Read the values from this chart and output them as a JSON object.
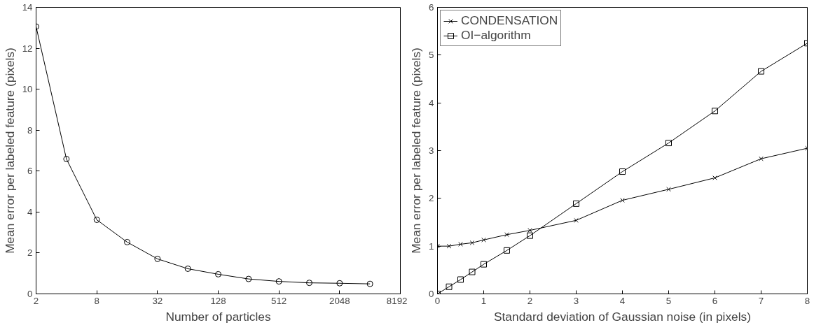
{
  "chart_data": [
    {
      "type": "line",
      "xlabel": "Number of particles",
      "ylabel": "Mean error per labeled feature (pixels)",
      "log": "x",
      "x": [
        2,
        4,
        8,
        16,
        32,
        64,
        128,
        256,
        512,
        1024,
        2048,
        4096
      ],
      "series": [
        {
          "color": "#000000",
          "values": [
            13.06,
            6.59,
            3.62,
            2.53,
            1.71,
            1.23,
            0.96,
            0.73,
            0.61,
            0.54,
            0.52,
            0.49
          ],
          "marker": "circle"
        }
      ],
      "xlim": [
        2,
        8192
      ],
      "xticks": [
        2,
        8,
        32,
        128,
        512,
        2048,
        8192
      ],
      "ylim": [
        0,
        14
      ],
      "yticks": [
        0,
        2,
        4,
        6,
        8,
        10,
        12,
        14
      ],
      "grid": false,
      "legend": false,
      "line_style": "solid"
    },
    {
      "type": "line",
      "xlabel": "Standard deviation of Gaussian noise (in pixels)",
      "ylabel": "Mean error per labeled feature (pixels)",
      "x": [
        0,
        0.25,
        0.5,
        0.75,
        1,
        1.5,
        2,
        3,
        4,
        5,
        6,
        7,
        8
      ],
      "series": [
        {
          "name": "CONDENSATION",
          "color": "#000000",
          "marker": "cross",
          "values": [
            1.0,
            1.0,
            1.04,
            1.07,
            1.13,
            1.24,
            1.33,
            1.54,
            1.96,
            2.19,
            2.43,
            2.83,
            3.05
          ]
        },
        {
          "name": "OI−algorithm",
          "color": "#000000",
          "marker": "square",
          "values": [
            0,
            0.15,
            0.3,
            0.46,
            0.62,
            0.91,
            1.22,
            1.89,
            2.56,
            3.16,
            3.83,
            4.66,
            5.25
          ]
        }
      ],
      "xlim": [
        0,
        8
      ],
      "xticks": [
        0,
        1,
        2,
        3,
        4,
        5,
        6,
        7,
        8
      ],
      "ylim": [
        0,
        6
      ],
      "yticks": [
        0,
        1,
        2,
        3,
        4,
        5,
        6
      ],
      "grid": false,
      "legend": "top left",
      "line_style": "solid"
    }
  ]
}
